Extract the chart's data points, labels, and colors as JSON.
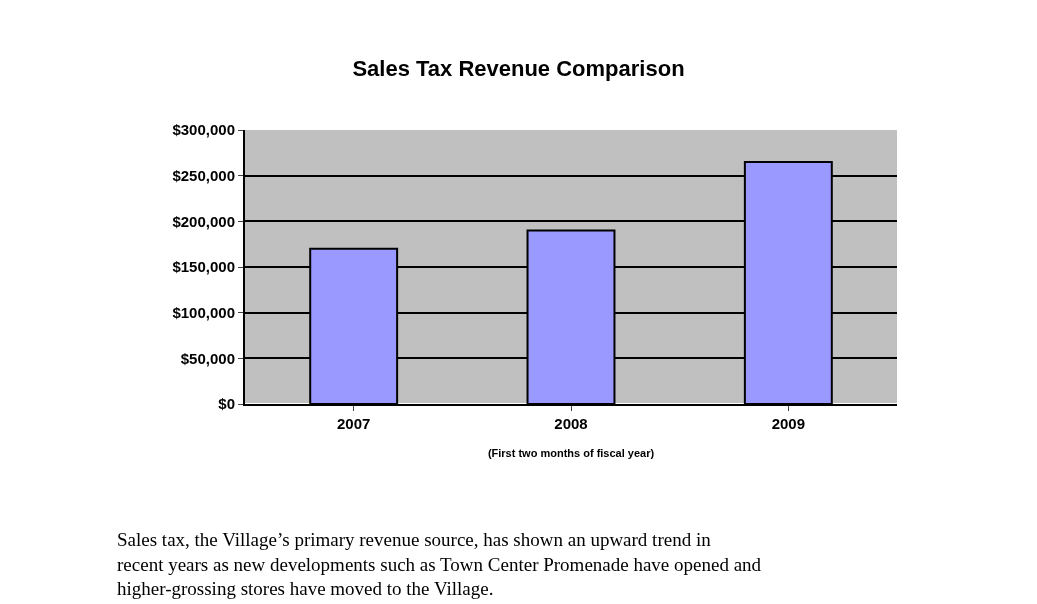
{
  "chart_data": {
    "type": "bar",
    "title": "Sales Tax Revenue Comparison",
    "xlabel": "(First two months of fiscal year)",
    "categories": [
      "2007",
      "2008",
      "2009"
    ],
    "values": [
      170000,
      190000,
      265000
    ],
    "color": "#9999ff",
    "ylim": [
      0,
      300000
    ],
    "yticks": [
      {
        "value": 0,
        "label": "$0"
      },
      {
        "value": 50000,
        "label": "$50,000"
      },
      {
        "value": 100000,
        "label": "$100,000"
      },
      {
        "value": 150000,
        "label": "$150,000"
      },
      {
        "value": 200000,
        "label": "$200,000"
      },
      {
        "value": 250000,
        "label": "$250,000"
      },
      {
        "value": 300000,
        "label": "$300,000"
      }
    ],
    "grid": "y",
    "annotations": [
      "Sales tax, the Village’s primary revenue source, has shown an upward trend in recent years as new developments such as Town Center Promenade have opened and higher-grossing stores have moved to the Village."
    ]
  }
}
